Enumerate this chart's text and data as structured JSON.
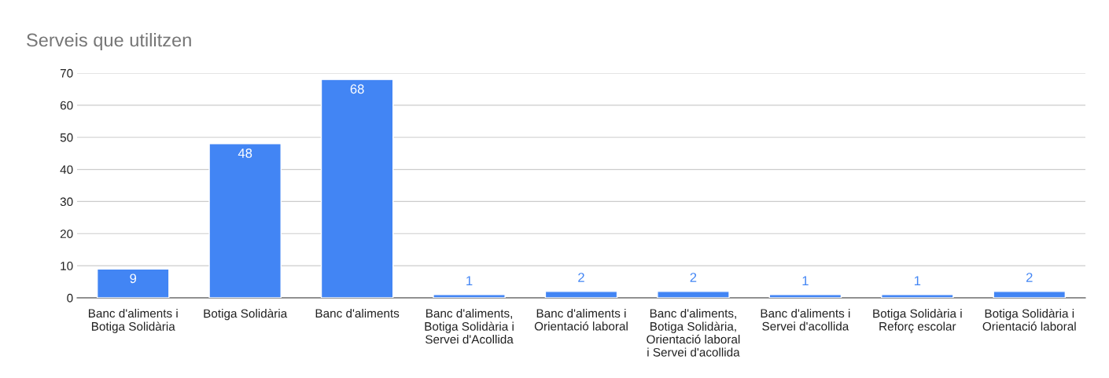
{
  "chart_data": {
    "type": "bar",
    "title": "Serveis que utilitzen",
    "categories": [
      "Banc d'aliments i\nBotiga Solidària",
      "Botiga Solidària",
      "Banc d'aliments",
      "Banc d'aliments,\nBotiga Solidària i\nServei d'Acollida",
      "Banc d'aliments i\nOrientació laboral",
      "Banc d'aliments,\nBotiga Solidària,\nOrientació laboral\ni Servei d'acollida",
      "Banc d'aliments i\nServei d'acollida",
      "Botiga Solidària i\nReforç escolar",
      "Botiga Solidària i\nOrientació laboral"
    ],
    "values": [
      9,
      48,
      68,
      1,
      2,
      2,
      1,
      1,
      2
    ],
    "color": "#4285f4",
    "ylim": [
      0,
      70
    ],
    "yticks": [
      0,
      10,
      20,
      30,
      40,
      50,
      60,
      70
    ],
    "grid": "y",
    "data_labels": true,
    "legend": false
  }
}
